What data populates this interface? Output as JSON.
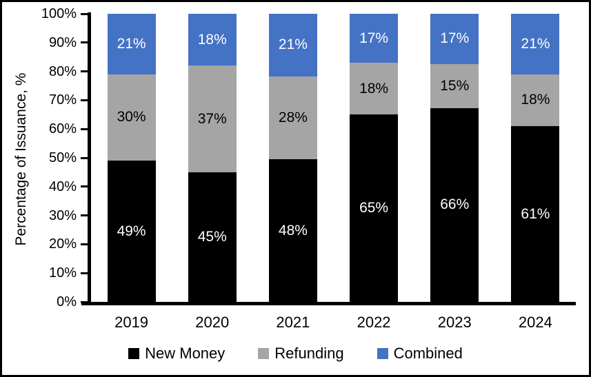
{
  "figure": {
    "background": "#ffffff",
    "border_color": "#000000",
    "axis_color": "#000000"
  },
  "chart_data": {
    "type": "bar",
    "stacked": true,
    "title": "",
    "xlabel": "",
    "ylabel": "Percentage of Issuance, %",
    "categories": [
      "2019",
      "2020",
      "2021",
      "2022",
      "2023",
      "2024"
    ],
    "series": [
      {
        "name": "New Money",
        "color": "#000000",
        "label_color": "#ffffff",
        "values": [
          49,
          45,
          48,
          65,
          66,
          61
        ]
      },
      {
        "name": "Refunding",
        "color": "#a5a5a5",
        "label_color": "#000000",
        "values": [
          30,
          37,
          28,
          18,
          15,
          18
        ]
      },
      {
        "name": "Combined",
        "color": "#4472c4",
        "label_color": "#ffffff",
        "values": [
          21,
          18,
          21,
          17,
          17,
          21
        ]
      }
    ],
    "value_suffix": "%",
    "ylim": [
      0,
      100
    ],
    "yticks": [
      "0%",
      "10%",
      "20%",
      "30%",
      "40%",
      "50%",
      "60%",
      "70%",
      "80%",
      "90%",
      "100%"
    ],
    "grid": false,
    "legend_position": "bottom"
  }
}
